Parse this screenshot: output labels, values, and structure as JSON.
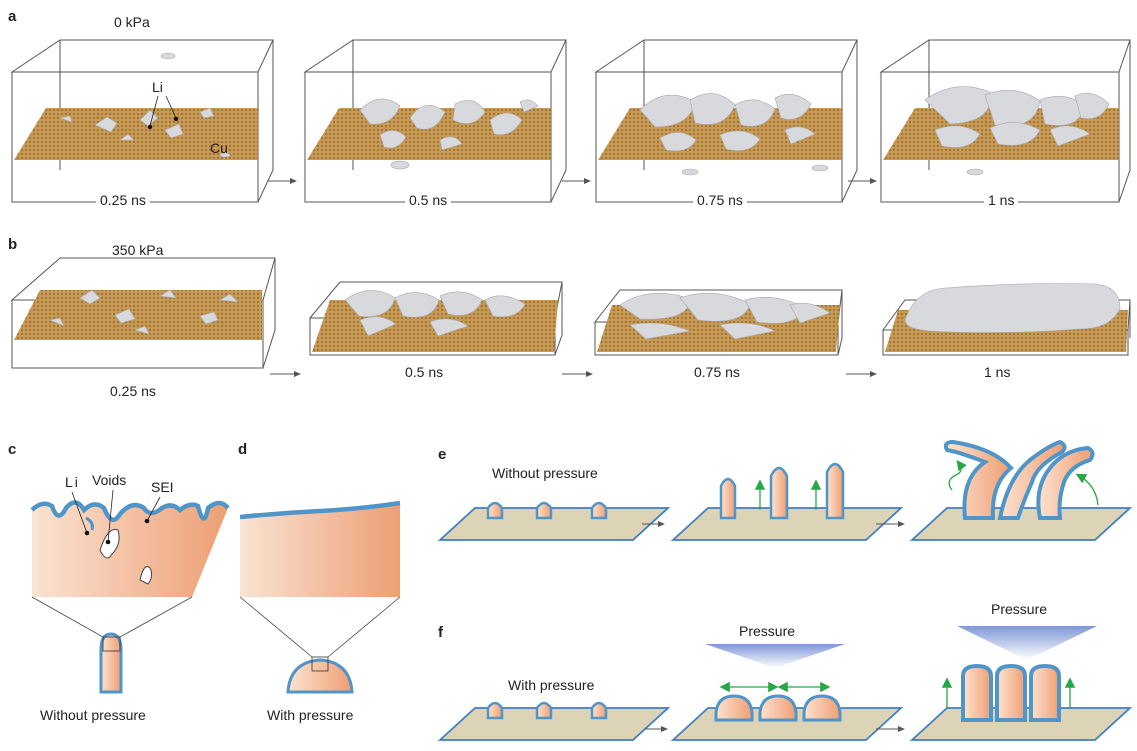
{
  "panels": {
    "a": "a",
    "b": "b",
    "c": "c",
    "d": "d",
    "e": "e",
    "f": "f"
  },
  "row_a": {
    "pressure": "0 kPa",
    "times": [
      "0.25 ns",
      "0.5 ns",
      "0.75 ns",
      "1 ns"
    ],
    "li_label": "Li",
    "cu_label": "Cu"
  },
  "row_b": {
    "pressure": "350 kPa",
    "times": [
      "0.25 ns",
      "0.5 ns",
      "0.75 ns",
      "1 ns"
    ]
  },
  "panel_c": {
    "li": "Li",
    "voids": "Voids",
    "sei": "SEI",
    "caption": "Without pressure"
  },
  "panel_d": {
    "caption": "With pressure"
  },
  "panel_e": {
    "caption": "Without pressure"
  },
  "panel_f": {
    "caption": "With pressure",
    "pressure_1": "Pressure",
    "pressure_2": "Pressure"
  },
  "colors": {
    "copper": "#c99a55",
    "lithium": "#d8d9dc",
    "sei": "#4f95c8",
    "li_fill": "#f2b896",
    "substrate": "#ddd3b7",
    "arrow_green": "#27a844",
    "pressure_blue": "#8fa5de"
  }
}
